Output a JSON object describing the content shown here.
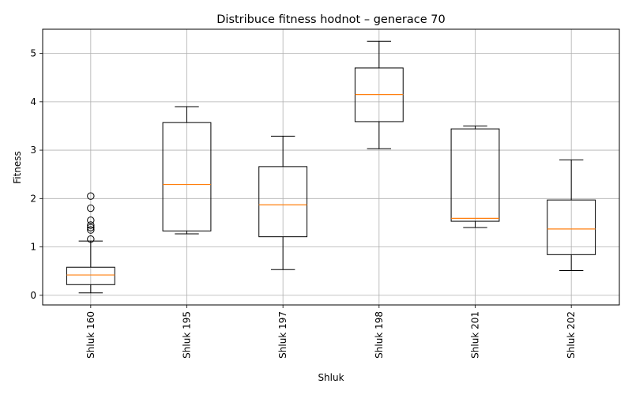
{
  "chart_data": {
    "type": "boxplot",
    "title": "Distribuce fitness hodnot – generace 70",
    "xlabel": "Shluk",
    "ylabel": "Fitness",
    "ylim": [
      -0.2,
      5.5
    ],
    "yticks": [
      0,
      1,
      2,
      3,
      4,
      5
    ],
    "grid": true,
    "colors": {
      "box": "#000000",
      "median": "#ff7f0e",
      "grid": "#b0b0b0"
    },
    "categories": [
      "Shluk 160",
      "Shluk 195",
      "Shluk 197",
      "Shluk 198",
      "Shluk 201",
      "Shluk 202"
    ],
    "boxes": [
      {
        "whisker_low": 0.05,
        "q1": 0.22,
        "median": 0.42,
        "q3": 0.58,
        "whisker_high": 1.12,
        "outliers": [
          1.16,
          1.35,
          1.4,
          1.45,
          1.55,
          1.8,
          2.05
        ]
      },
      {
        "whisker_low": 1.27,
        "q1": 1.33,
        "median": 2.29,
        "q3": 3.57,
        "whisker_high": 3.9,
        "outliers": []
      },
      {
        "whisker_low": 0.53,
        "q1": 1.21,
        "median": 1.87,
        "q3": 2.66,
        "whisker_high": 3.29,
        "outliers": []
      },
      {
        "whisker_low": 3.03,
        "q1": 3.59,
        "median": 4.15,
        "q3": 4.7,
        "whisker_high": 5.25,
        "outliers": []
      },
      {
        "whisker_low": 1.4,
        "q1": 1.53,
        "median": 1.59,
        "q3": 3.44,
        "whisker_high": 3.5,
        "outliers": []
      },
      {
        "whisker_low": 0.51,
        "q1": 0.84,
        "median": 1.37,
        "q3": 1.97,
        "whisker_high": 2.8,
        "outliers": []
      }
    ]
  }
}
